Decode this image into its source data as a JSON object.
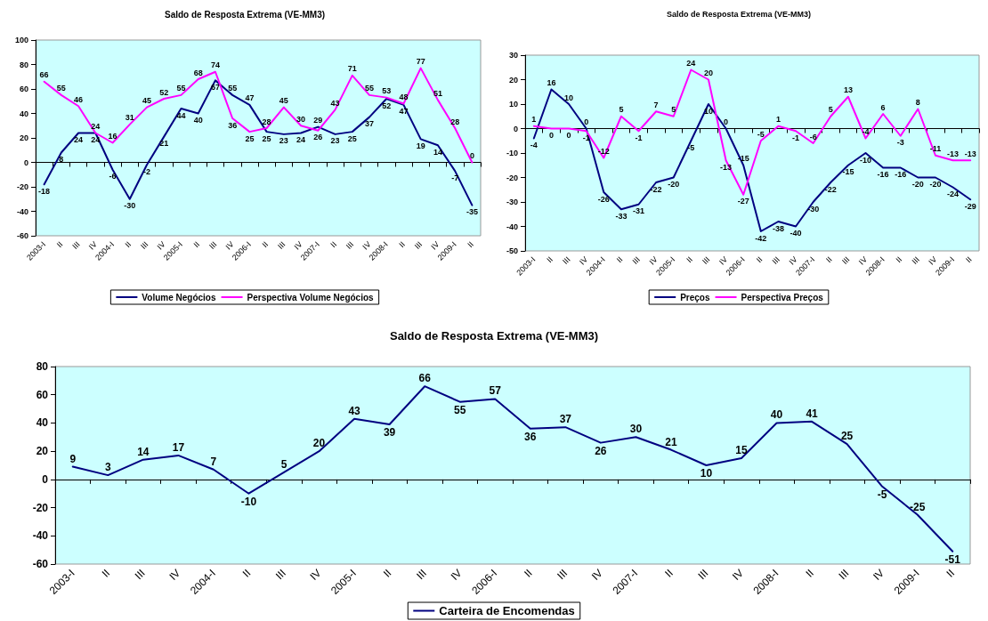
{
  "chart_data": [
    {
      "type": "line",
      "title": "Saldo de Resposta Extrema (VE-MM3)",
      "categories": [
        "2003-I",
        "II",
        "III",
        "IV",
        "2004-I",
        "II",
        "III",
        "IV",
        "2005-I",
        "II",
        "III",
        "IV",
        "2006-I",
        "II",
        "III",
        "IV",
        "2007-I",
        "II",
        "III",
        "IV",
        "2008-I",
        "II",
        "III",
        "IV",
        "2009-I",
        "II"
      ],
      "series": [
        {
          "name": "Volume Negócios",
          "color": "#000080",
          "values": [
            -18,
            8,
            24,
            24,
            -6,
            -30,
            -2,
            21,
            44,
            40,
            67,
            55,
            47,
            25,
            23,
            24,
            29,
            23,
            25,
            37,
            52,
            47,
            19,
            14,
            -7,
            -35
          ]
        },
        {
          "name": "Perspectiva Volume Negócios",
          "color": "#ff00ff",
          "values": [
            66,
            55,
            46,
            24,
            16,
            31,
            45,
            52,
            55,
            68,
            74,
            36,
            25,
            28,
            45,
            30,
            26,
            43,
            71,
            55,
            53,
            48,
            77,
            51,
            28,
            0
          ]
        }
      ],
      "ylim": [
        -60,
        100
      ],
      "yticks": [
        -60,
        -40,
        -20,
        0,
        20,
        40,
        60,
        80,
        100
      ],
      "data_labels": true,
      "legend": "bottom",
      "marker": "none"
    },
    {
      "type": "line",
      "title": "Saldo de Resposta Extrema (VE-MM3)",
      "categories": [
        "2003-I",
        "II",
        "III",
        "IV",
        "2004-I",
        "II",
        "III",
        "IV",
        "2005-I",
        "II",
        "III",
        "IV",
        "2006-I",
        "II",
        "III",
        "IV",
        "2007-I",
        "II",
        "III",
        "IV",
        "2008-I",
        "II",
        "III",
        "IV",
        "2009-I",
        "II"
      ],
      "series": [
        {
          "name": "Preços",
          "color": "#000080",
          "values": [
            -4,
            16,
            10,
            0,
            -26,
            -33,
            -31,
            -22,
            -20,
            -5,
            10,
            0,
            -15,
            -42,
            -38,
            -40,
            -30,
            -22,
            -15,
            -10,
            -16,
            -16,
            -20,
            -20,
            -24,
            -29
          ]
        },
        {
          "name": "Perspectiva Preços",
          "color": "#ff00ff",
          "values": [
            1,
            0,
            0,
            -1,
            -12,
            5,
            -1,
            7,
            5,
            24,
            20,
            -13,
            -27,
            -5,
            1,
            -1,
            -6,
            5,
            13,
            -4,
            6,
            -3,
            8,
            -11,
            -13,
            -13
          ]
        }
      ],
      "ylim": [
        -50,
        30
      ],
      "yticks": [
        -50,
        -40,
        -30,
        -20,
        -10,
        0,
        10,
        20,
        30
      ],
      "data_labels": true,
      "legend": "bottom",
      "marker": "none"
    },
    {
      "type": "line",
      "title": "Saldo de Resposta Extrema (VE-MM3)",
      "categories": [
        "2003-I",
        "II",
        "III",
        "IV",
        "2004-I",
        "II",
        "III",
        "IV",
        "2005-I",
        "II",
        "III",
        "IV",
        "2006-I",
        "II",
        "III",
        "IV",
        "2007-I",
        "II",
        "III",
        "IV",
        "2008-I",
        "II",
        "III",
        "IV",
        "2009-I",
        "II"
      ],
      "series": [
        {
          "name": "Carteira de Encomendas",
          "color": "#000080",
          "values": [
            9,
            3,
            14,
            17,
            7,
            -10,
            5,
            20,
            43,
            39,
            66,
            55,
            57,
            36,
            37,
            26,
            30,
            21,
            10,
            15,
            40,
            41,
            25,
            -5,
            -25,
            -51
          ]
        }
      ],
      "ylim": [
        -60,
        80
      ],
      "yticks": [
        -60,
        -40,
        -20,
        0,
        20,
        40,
        60,
        80
      ],
      "data_labels": true,
      "legend": "bottom",
      "marker": "none"
    }
  ]
}
